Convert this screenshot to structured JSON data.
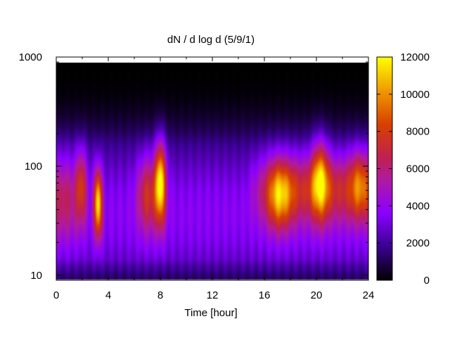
{
  "chart_data": {
    "type": "heatmap",
    "title": "dN / d log d (5/9/1)",
    "xlabel": "Time [hour]",
    "ylabel": "",
    "xlim": [
      0,
      24
    ],
    "ylim": [
      9,
      1000
    ],
    "y_scale": "log",
    "x_ticks": [
      0,
      4,
      8,
      12,
      16,
      20,
      24
    ],
    "y_ticks": [
      10,
      100,
      1000
    ],
    "colorbar": {
      "range": [
        0,
        12000
      ],
      "ticks": [
        0,
        2000,
        4000,
        6000,
        8000,
        10000,
        12000
      ],
      "palette": "gnuplot black-purple-red-orange-yellow"
    },
    "data_coverage": {
      "y_min": 9,
      "y_max": 900
    },
    "hotspots": [
      {
        "t": 3.2,
        "d": 45,
        "value": 9500
      },
      {
        "t": 8.0,
        "d": 70,
        "value": 11000
      },
      {
        "t": 17.2,
        "d": 55,
        "value": 8000
      },
      {
        "t": 20.3,
        "d": 75,
        "value": 9500
      }
    ]
  }
}
